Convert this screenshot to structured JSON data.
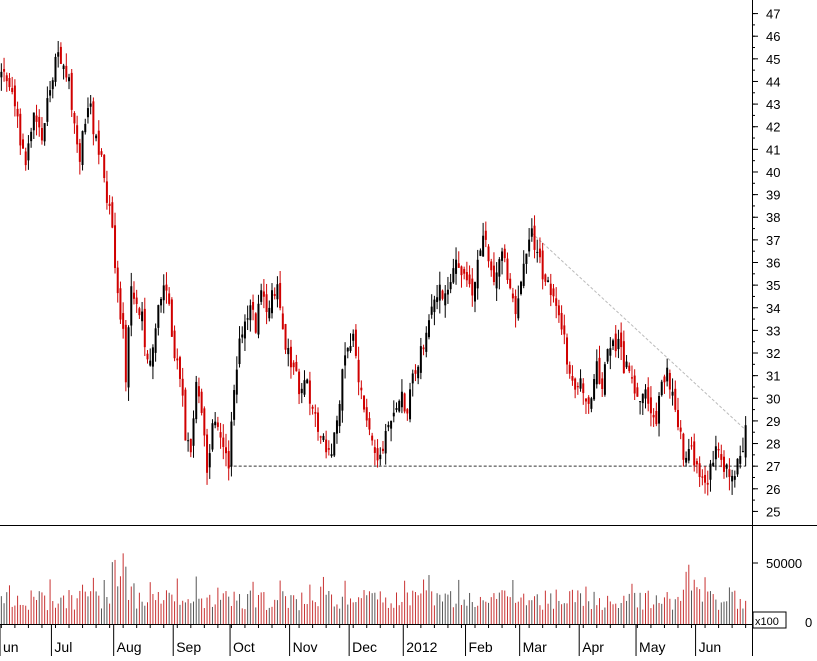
{
  "chart_data": {
    "type": "candlestick",
    "price_axis": {
      "ticks": [
        25,
        26,
        27,
        28,
        29,
        30,
        31,
        32,
        33,
        34,
        35,
        36,
        37,
        38,
        39,
        40,
        41,
        42,
        43,
        44,
        45,
        46,
        47
      ],
      "ylim": [
        24.4,
        47.6
      ]
    },
    "volume_axis": {
      "ticks": [
        0,
        50000
      ],
      "multiplier_label": "x100",
      "ylim": [
        0,
        80000
      ]
    },
    "x_axis": {
      "labels": [
        "un",
        "Jul",
        "Aug",
        "Sep",
        "Oct",
        "Nov",
        "Dec",
        "2012",
        "Feb",
        "Mar",
        "Apr",
        "May",
        "Jun"
      ],
      "label_days": [
        0,
        19,
        42,
        64,
        85,
        107,
        129,
        149,
        172,
        192,
        214,
        235,
        257
      ]
    },
    "total_days": 276,
    "price_path": [
      [
        0,
        44.3
      ],
      [
        4,
        43.6
      ],
      [
        7,
        41.5
      ],
      [
        9,
        40.7
      ],
      [
        12,
        42.3
      ],
      [
        15,
        41.6
      ],
      [
        18,
        43.5
      ],
      [
        20,
        45.2
      ],
      [
        23,
        45.0
      ],
      [
        25,
        43.8
      ],
      [
        27,
        42.0
      ],
      [
        29,
        40.5
      ],
      [
        31,
        42.5
      ],
      [
        33,
        42.8
      ],
      [
        35,
        41.3
      ],
      [
        37,
        40.5
      ],
      [
        39,
        39.0
      ],
      [
        41,
        37.5
      ],
      [
        43,
        34.5
      ],
      [
        45,
        33.0
      ],
      [
        46,
        31.0
      ],
      [
        48,
        35.0
      ],
      [
        50,
        34.5
      ],
      [
        52,
        33.5
      ],
      [
        54,
        31.5
      ],
      [
        56,
        32.5
      ],
      [
        58,
        34.0
      ],
      [
        60,
        35.0
      ],
      [
        62,
        34.0
      ],
      [
        64,
        32.0
      ],
      [
        66,
        31.0
      ],
      [
        68,
        28.5
      ],
      [
        70,
        28.0
      ],
      [
        72,
        30.5
      ],
      [
        74,
        29.5
      ],
      [
        76,
        27.0
      ],
      [
        78,
        28.5
      ],
      [
        80,
        28.8
      ],
      [
        82,
        28.0
      ],
      [
        84,
        27.2
      ],
      [
        86,
        30.0
      ],
      [
        88,
        32.5
      ],
      [
        90,
        33.5
      ],
      [
        92,
        34.2
      ],
      [
        94,
        33.0
      ],
      [
        96,
        35.0
      ],
      [
        98,
        33.5
      ],
      [
        100,
        34.5
      ],
      [
        102,
        35.3
      ],
      [
        104,
        33.0
      ],
      [
        106,
        32.0
      ],
      [
        108,
        31.5
      ],
      [
        110,
        30.5
      ],
      [
        112,
        31.0
      ],
      [
        114,
        30.0
      ],
      [
        116,
        29.0
      ],
      [
        118,
        28.5
      ],
      [
        120,
        27.5
      ],
      [
        122,
        27.8
      ],
      [
        124,
        29.0
      ],
      [
        126,
        31.0
      ],
      [
        128,
        32.0
      ],
      [
        130,
        32.5
      ],
      [
        132,
        30.5
      ],
      [
        134,
        29.5
      ],
      [
        136,
        28.5
      ],
      [
        138,
        27.5
      ],
      [
        140,
        27.3
      ],
      [
        142,
        28.5
      ],
      [
        144,
        29.0
      ],
      [
        146,
        29.5
      ],
      [
        148,
        30.0
      ],
      [
        150,
        29.5
      ],
      [
        152,
        31.0
      ],
      [
        154,
        31.5
      ],
      [
        156,
        32.5
      ],
      [
        158,
        33.5
      ],
      [
        160,
        34.5
      ],
      [
        162,
        35.0
      ],
      [
        164,
        34.5
      ],
      [
        166,
        35.5
      ],
      [
        168,
        36.0
      ],
      [
        170,
        35.5
      ],
      [
        172,
        35.0
      ],
      [
        174,
        34.5
      ],
      [
        176,
        36.5
      ],
      [
        178,
        37.3
      ],
      [
        180,
        36.0
      ],
      [
        182,
        35.5
      ],
      [
        184,
        36.2
      ],
      [
        186,
        36.0
      ],
      [
        188,
        35.0
      ],
      [
        190,
        34.0
      ],
      [
        192,
        35.5
      ],
      [
        194,
        36.5
      ],
      [
        196,
        37.2
      ],
      [
        198,
        36.5
      ],
      [
        200,
        35.5
      ],
      [
        202,
        35.0
      ],
      [
        204,
        34.5
      ],
      [
        206,
        33.5
      ],
      [
        208,
        32.5
      ],
      [
        210,
        31.0
      ],
      [
        212,
        30.5
      ],
      [
        214,
        31.0
      ],
      [
        216,
        30.0
      ],
      [
        218,
        29.8
      ],
      [
        220,
        31.5
      ],
      [
        222,
        30.5
      ],
      [
        224,
        31.8
      ],
      [
        226,
        32.2
      ],
      [
        228,
        32.5
      ],
      [
        230,
        31.5
      ],
      [
        232,
        31.0
      ],
      [
        234,
        30.5
      ],
      [
        236,
        30.0
      ],
      [
        238,
        30.5
      ],
      [
        240,
        29.5
      ],
      [
        242,
        29.0
      ],
      [
        244,
        30.5
      ],
      [
        246,
        31.0
      ],
      [
        248,
        30.0
      ],
      [
        250,
        29.0
      ],
      [
        252,
        27.5
      ],
      [
        254,
        28.0
      ],
      [
        256,
        27.0
      ],
      [
        258,
        26.5
      ],
      [
        260,
        26.0
      ],
      [
        262,
        26.8
      ],
      [
        264,
        27.5
      ],
      [
        266,
        27.3
      ],
      [
        268,
        26.8
      ],
      [
        270,
        26.5
      ],
      [
        272,
        27.0
      ],
      [
        273,
        27.3
      ],
      [
        274,
        28.0
      ],
      [
        275,
        29.0
      ]
    ],
    "support_line": {
      "from": [
        84,
        27.0
      ],
      "to": [
        275,
        27.0
      ]
    },
    "resistance_line": {
      "from": [
        196,
        37.3
      ],
      "to": [
        275,
        28.6
      ]
    },
    "colors": {
      "up": "#000000",
      "down": "#d00000",
      "volume": "#c83232",
      "grid": "#000000",
      "trendline": "#bbbbbb"
    }
  }
}
